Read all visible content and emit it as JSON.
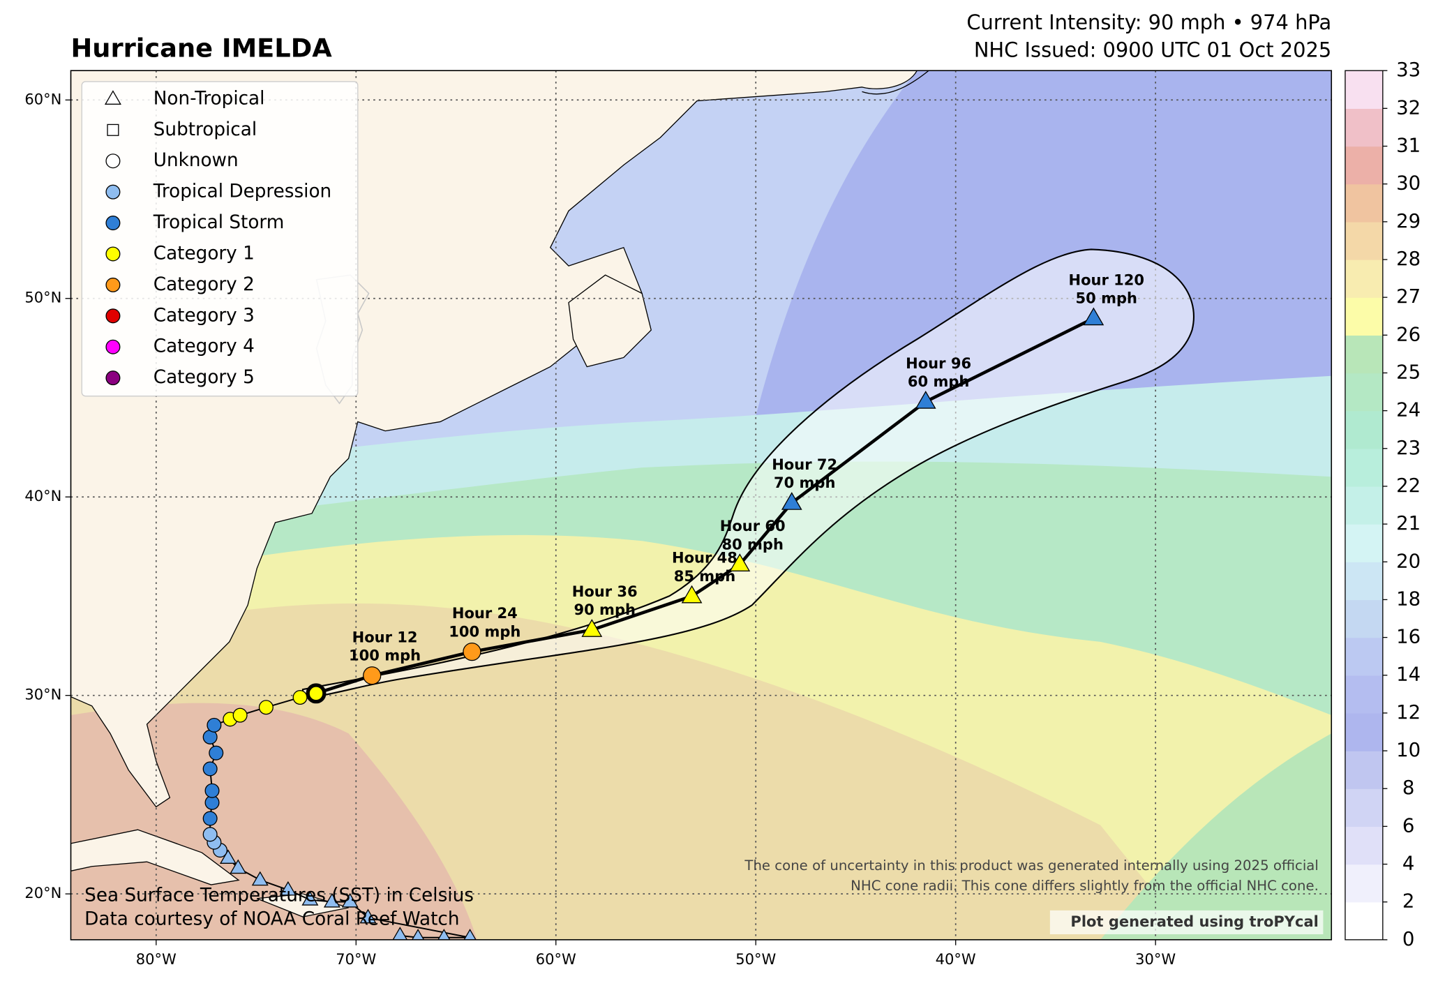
{
  "chart_data": {
    "type": "track_map",
    "title": "Hurricane IMELDA",
    "subtitle_lines": [
      "Current Intensity: 90 mph • 974 hPa",
      "NHC Issued: 0900 UTC 01 Oct 2025"
    ],
    "xlim": [
      -84.27,
      -21.2
    ],
    "ylim": [
      17.69,
      61.48
    ],
    "xticks": [
      {
        "value": -80,
        "label": "80°W"
      },
      {
        "value": -70,
        "label": "70°W"
      },
      {
        "value": -60,
        "label": "60°W"
      },
      {
        "value": -50,
        "label": "50°W"
      },
      {
        "value": -40,
        "label": "40°W"
      },
      {
        "value": -30,
        "label": "30°W"
      }
    ],
    "yticks": [
      {
        "value": 20,
        "label": "20°N"
      },
      {
        "value": 30,
        "label": "30°N"
      },
      {
        "value": 40,
        "label": "40°N"
      },
      {
        "value": 50,
        "label": "50°N"
      },
      {
        "value": 60,
        "label": "60°N"
      }
    ],
    "grid": true,
    "legend": [
      {
        "name": "Non-Tropical",
        "marker": "triangle",
        "color": "#ffffff"
      },
      {
        "name": "Subtropical",
        "marker": "square",
        "color": "#ffffff"
      },
      {
        "name": "Unknown",
        "marker": "circle",
        "color": "#ffffff"
      },
      {
        "name": "Tropical Depression",
        "marker": "circle",
        "color": "#8fbdf0"
      },
      {
        "name": "Tropical Storm",
        "marker": "circle",
        "color": "#2f7fd6"
      },
      {
        "name": "Category 1",
        "marker": "circle",
        "color": "#ffff00"
      },
      {
        "name": "Category 2",
        "marker": "circle",
        "color": "#ff9a1a"
      },
      {
        "name": "Category 3",
        "marker": "circle",
        "color": "#e00000"
      },
      {
        "name": "Category 4",
        "marker": "circle",
        "color": "#ff00ff"
      },
      {
        "name": "Category 5",
        "marker": "circle",
        "color": "#8b0080"
      }
    ],
    "past_track": {
      "lon": [
        -67.8,
        -66.9,
        -65.6,
        -64.3,
        -69.4,
        -70.3,
        -71.2,
        -72.3,
        -73.4,
        -74.8,
        -75.9,
        -76.4,
        -76.8,
        -77.1,
        -77.3,
        -77.3,
        -77.2,
        -77.2,
        -77.3,
        -77.0,
        -77.3,
        -77.1,
        -76.3,
        -75.8,
        -74.5,
        -72.8,
        -72.0
      ],
      "lat": [
        17.9,
        17.8,
        17.8,
        17.8,
        18.8,
        19.6,
        19.6,
        19.7,
        20.2,
        20.7,
        21.3,
        21.8,
        22.2,
        22.6,
        23.0,
        23.8,
        24.6,
        25.2,
        26.3,
        27.1,
        27.9,
        28.5,
        28.8,
        29.0,
        29.4,
        29.9,
        30.1
      ],
      "markers": [
        "triangle",
        "triangle",
        "triangle",
        "triangle",
        "triangle",
        "triangle",
        "triangle",
        "triangle",
        "triangle",
        "triangle",
        "triangle",
        "triangle",
        "circle",
        "circle",
        "circle",
        "circle",
        "circle",
        "circle",
        "circle",
        "circle",
        "circle",
        "circle",
        "circle",
        "circle",
        "circle",
        "circle",
        "circle"
      ],
      "colors": [
        "#8fbdf0",
        "#8fbdf0",
        "#8fbdf0",
        "#8fbdf0",
        "#8fbdf0",
        "#8fbdf0",
        "#8fbdf0",
        "#8fbdf0",
        "#8fbdf0",
        "#8fbdf0",
        "#8fbdf0",
        "#8fbdf0",
        "#8fbdf0",
        "#8fbdf0",
        "#8fbdf0",
        "#2f7fd6",
        "#2f7fd6",
        "#2f7fd6",
        "#2f7fd6",
        "#2f7fd6",
        "#2f7fd6",
        "#2f7fd6",
        "#ffff00",
        "#ffff00",
        "#ffff00",
        "#ffff00",
        "#ffff00"
      ]
    },
    "forecast": [
      {
        "hour": "Hour 12",
        "wind": "100 mph",
        "lon": -69.2,
        "lat": 31.0,
        "marker": "circle",
        "color": "#ff9a1a"
      },
      {
        "hour": "Hour 24",
        "wind": "100 mph",
        "lon": -64.2,
        "lat": 32.2,
        "marker": "circle",
        "color": "#ff9a1a"
      },
      {
        "hour": "Hour 36",
        "wind": "90 mph",
        "lon": -58.2,
        "lat": 33.3,
        "marker": "triangle",
        "color": "#ffff00"
      },
      {
        "hour": "Hour 48",
        "wind": "85 mph",
        "lon": -53.2,
        "lat": 35.0,
        "marker": "triangle",
        "color": "#ffff00"
      },
      {
        "hour": "Hour 60",
        "wind": "80 mph",
        "lon": -50.8,
        "lat": 36.6,
        "marker": "triangle",
        "color": "#ffff00"
      },
      {
        "hour": "Hour 72",
        "wind": "70 mph",
        "lon": -48.2,
        "lat": 39.7,
        "marker": "triangle",
        "color": "#2f7fd6"
      },
      {
        "hour": "Hour 96",
        "wind": "60 mph",
        "lon": -41.5,
        "lat": 44.8,
        "marker": "triangle",
        "color": "#2f7fd6"
      },
      {
        "hour": "Hour 120",
        "wind": "50 mph",
        "lon": -33.1,
        "lat": 49.0,
        "marker": "triangle",
        "color": "#2f7fd6"
      }
    ],
    "colorbar": {
      "ticks": [
        0,
        2,
        4,
        6,
        8,
        10,
        12,
        14,
        16,
        18,
        20,
        21,
        22,
        23,
        24,
        25,
        26,
        27,
        28,
        29,
        30,
        31,
        32,
        33
      ],
      "colors": [
        "#ffffff",
        "#f0f0fc",
        "#e0e0f8",
        "#d0d4f4",
        "#c0c6f0",
        "#aeb6ee",
        "#b4bdf0",
        "#bcc9f2",
        "#c4d8f2",
        "#cce6f4",
        "#d4f4f4",
        "#c4f0e8",
        "#b8eedc",
        "#b0ead0",
        "#b4e8c4",
        "#b8e6b8",
        "#fcfca8",
        "#f8ecb0",
        "#f4d8a8",
        "#f0c4a0",
        "#ecb0a8",
        "#f0c0c8",
        "#f8e0f0"
      ]
    },
    "source_lines": [
      "Sea Surface Temperatures (SST) in Celsius",
      "Data courtesy of NOAA Coral Reef Watch"
    ],
    "note_lines": [
      "The cone of uncertainty in this product was generated internally using 2025 official",
      "NHC cone radii. This cone differs slightly from the official NHC cone."
    ],
    "credit": "Plot generated using troPYcal"
  }
}
